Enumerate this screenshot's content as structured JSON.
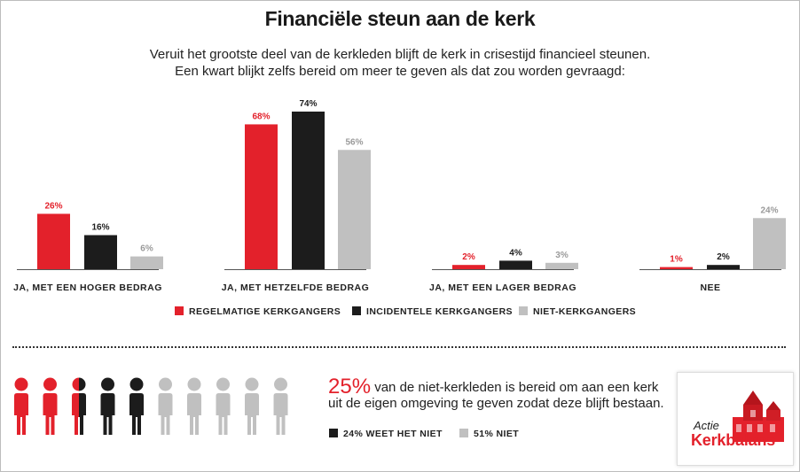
{
  "title": "Financiële steun aan de kerk",
  "subtitle_line1": "Veruit het grootste deel van de kerkleden blijft de kerk in crisestijd financieel steunen.",
  "subtitle_line2": "Een kwart blijkt zelfs bereid om meer te geven als dat zou worden gevraagd:",
  "colors": {
    "red": "#e3212b",
    "black": "#1c1c1c",
    "gray": "#c0c0c0"
  },
  "chart_data": {
    "type": "bar",
    "title": "Financiële steun aan de kerk",
    "categories": [
      "JA, MET EEN HOGER BEDRAG",
      "JA, MET HETZELFDE BEDRAG",
      "JA, MET EEN LAGER BEDRAG",
      "NEE"
    ],
    "series": [
      {
        "name": "REGELMATIGE KERKGANGERS",
        "color": "#e3212b",
        "values": [
          26,
          68,
          2,
          1
        ]
      },
      {
        "name": "INCIDENTELE KERKGANGERS",
        "color": "#1c1c1c",
        "values": [
          16,
          74,
          4,
          2
        ]
      },
      {
        "name": "NIET-KERKGANGERS",
        "color": "#c0c0c0",
        "values": [
          6,
          56,
          3,
          24
        ]
      }
    ],
    "unit": "%",
    "ylim": [
      0,
      74
    ],
    "legend": "bottom-center",
    "grid": false
  },
  "stat": {
    "big": "25%",
    "text": " van de niet-kerkleden is bereid om aan een kerk uit de eigen omgeving te geven zodat deze blijft bestaan.",
    "people": [
      "red",
      "red",
      "half",
      "black",
      "black",
      "gray",
      "gray",
      "gray",
      "gray",
      "gray"
    ],
    "legend": [
      {
        "label": "24% WEET HET NIET",
        "color": "#1c1c1c"
      },
      {
        "label": "51% NIET",
        "color": "#c0c0c0"
      }
    ]
  },
  "logo": {
    "line1": "Actie",
    "line2": "Kerkbalans"
  }
}
